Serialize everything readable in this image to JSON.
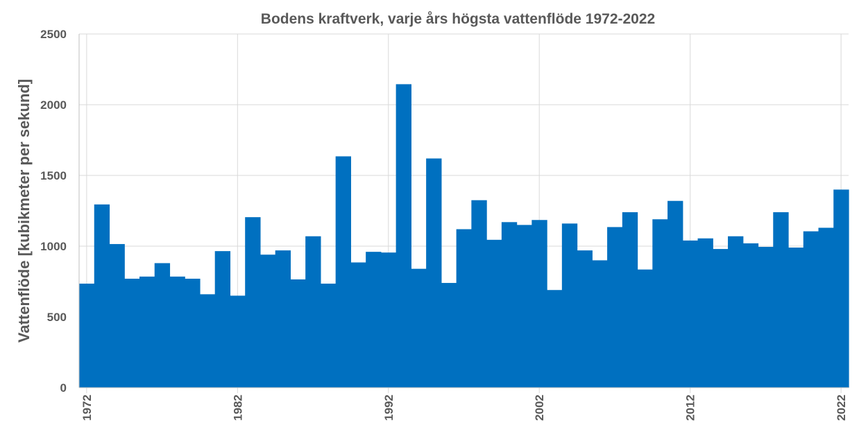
{
  "chart_data": {
    "type": "bar",
    "title": "Bodens kraftverk, varje års högsta vattenflöde 1972-2022",
    "xlabel": "",
    "ylabel": "Vattenflöde [kubikmeter per sekund]",
    "ylim": [
      0,
      2500
    ],
    "yticks": [
      0,
      500,
      1000,
      1500,
      2000,
      2500
    ],
    "xtick_labels": [
      "1972",
      "1982",
      "1992",
      "2002",
      "2012",
      "2022"
    ],
    "grid": true,
    "legend": "none",
    "bar_color": "#0070C0",
    "categories": [
      1972,
      1973,
      1974,
      1975,
      1976,
      1977,
      1978,
      1979,
      1980,
      1981,
      1982,
      1983,
      1984,
      1985,
      1986,
      1987,
      1988,
      1989,
      1990,
      1991,
      1992,
      1993,
      1994,
      1995,
      1996,
      1997,
      1998,
      1999,
      2000,
      2001,
      2002,
      2003,
      2004,
      2005,
      2006,
      2007,
      2008,
      2009,
      2010,
      2011,
      2012,
      2013,
      2014,
      2015,
      2016,
      2017,
      2018,
      2019,
      2020,
      2021,
      2022
    ],
    "values": [
      735,
      1295,
      1015,
      770,
      785,
      880,
      785,
      770,
      660,
      965,
      650,
      1205,
      940,
      970,
      765,
      1070,
      735,
      1635,
      885,
      960,
      955,
      2145,
      840,
      1620,
      740,
      1120,
      1325,
      1045,
      1170,
      1150,
      1185,
      690,
      1160,
      970,
      900,
      1135,
      1240,
      835,
      1190,
      1320,
      1040,
      1055,
      980,
      1070,
      1020,
      995,
      1240,
      990,
      1105,
      1130,
      1400
    ]
  }
}
